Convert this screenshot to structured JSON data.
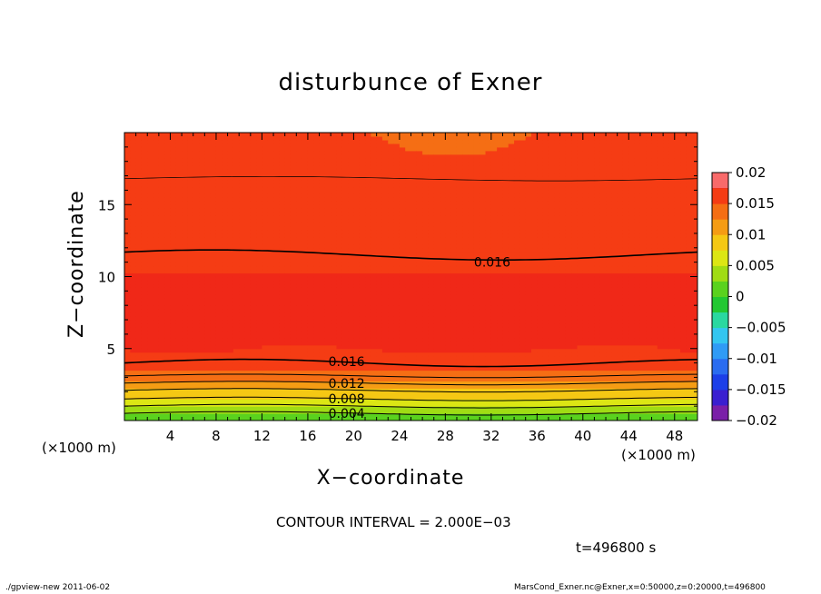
{
  "figure": {
    "title": "disturbunce of Exner",
    "xlabel": "X−coordinate",
    "ylabel": "Z−coordinate",
    "x_unit_left": "(×1000 m)",
    "x_unit_right": "(×1000 m)",
    "contour_interval": "CONTOUR INTERVAL = 2.000E−03",
    "time_label": "t=496800 s",
    "footer_left": "./gpview-new   2011-06-02",
    "footer_right": "MarsCond_Exner.nc@Exner,x=0:50000,z=0:20000,t=496800"
  },
  "chart_data": {
    "type": "heatmap",
    "title": "disturbunce of Exner",
    "xlabel": "X−coordinate",
    "ylabel": "Z−coordinate",
    "xlim": [
      0,
      50
    ],
    "ylim": [
      0,
      20
    ],
    "x_ticks": [
      4,
      8,
      12,
      16,
      20,
      24,
      28,
      32,
      36,
      40,
      44,
      48
    ],
    "x_tick_labels": [
      "4",
      "8",
      "12",
      "16",
      "20",
      "24",
      "28",
      "32",
      "36",
      "40",
      "44",
      "48"
    ],
    "y_ticks": [
      5,
      10,
      15
    ],
    "y_tick_labels": [
      "5",
      "10",
      "15"
    ],
    "colorbar": {
      "levels": [
        -0.02,
        -0.0175,
        -0.015,
        -0.0125,
        -0.01,
        -0.0075,
        -0.005,
        -0.0025,
        0,
        0.0025,
        0.005,
        0.0075,
        0.01,
        0.0125,
        0.015,
        0.0175,
        0.02
      ],
      "tick_values": [
        0.02,
        0.015,
        0.01,
        0.005,
        0,
        -0.005,
        -0.01,
        -0.015,
        -0.02
      ],
      "tick_labels": [
        "0.02",
        "0.015",
        "0.01",
        "0.005",
        "0",
        "−0.005",
        "−0.01",
        "−0.015",
        "−0.02"
      ],
      "colors": [
        "#7a1fa8",
        "#3a1fd0",
        "#1c3fe8",
        "#2a6cf0",
        "#2f9bf5",
        "#33c6f0",
        "#2ad8a0",
        "#22c832",
        "#5ad21e",
        "#a0dc14",
        "#dce614",
        "#f5c814",
        "#f59c14",
        "#f56e14",
        "#f53c14",
        "#f02818",
        "#f86a6a"
      ]
    },
    "contour_interval": 0.002,
    "contour_labels": [
      {
        "value": 0.016,
        "text": "0.016",
        "x": 30.5,
        "z": 11.0
      },
      {
        "value": 0.016,
        "text": "0.016",
        "x": 17.8,
        "z": 4.1
      },
      {
        "value": 0.012,
        "text": "0.012",
        "x": 17.8,
        "z": 2.6
      },
      {
        "value": 0.008,
        "text": "0.008",
        "x": 17.8,
        "z": 1.5
      },
      {
        "value": 0.004,
        "text": "0.004",
        "x": 17.8,
        "z": 0.5
      }
    ]
  }
}
